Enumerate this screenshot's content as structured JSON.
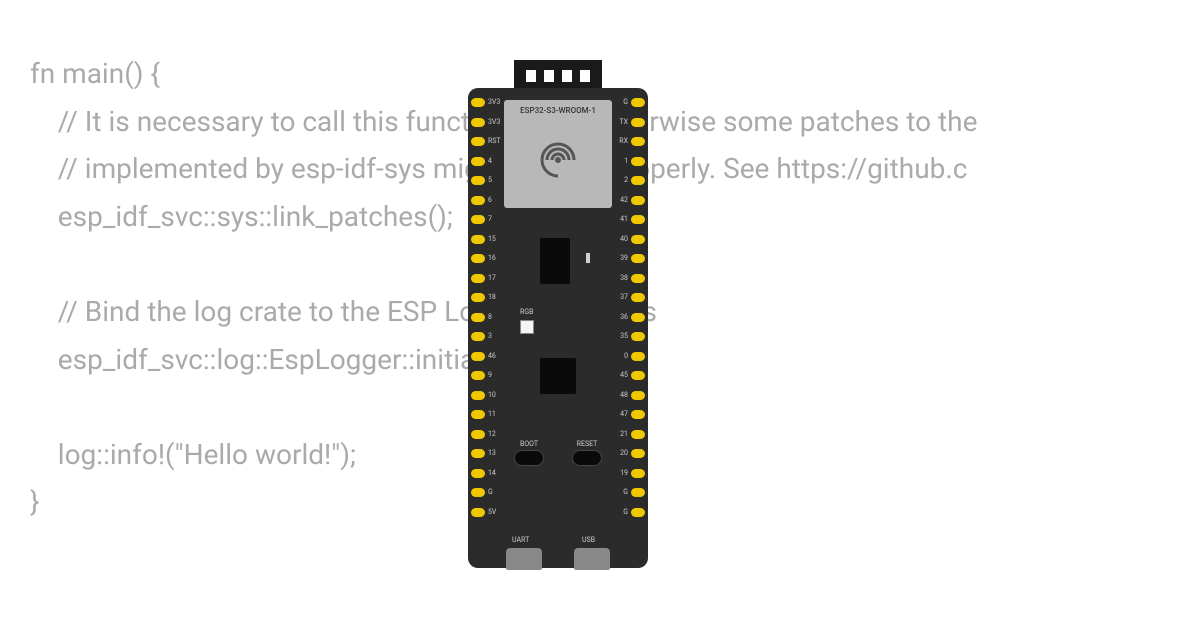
{
  "code": {
    "lines": [
      "fn main() {",
      "    // It is necessary to call this function once. Otherwise some patches to the",
      "    // implemented by esp-idf-sys might not link properly. See https://github.c",
      "    esp_idf_svc::sys::link_patches();",
      "",
      "    // Bind the log crate to the ESP Logging facilities",
      "    esp_idf_svc::log::EspLogger::initialize_default();",
      "",
      "    log::info!(\"Hello world!\");",
      "}"
    ],
    "color": "#aaaaaa",
    "fontsize": 28
  },
  "board": {
    "chip_label": "ESP32-S3-WROOM-1",
    "rgb_label": "RGB",
    "boot_label": "BOOT",
    "reset_label": "RESET",
    "uart_label": "UART",
    "usb_label": "USB",
    "colors": {
      "pcb": "#2b2b2b",
      "pin": "#f0c800",
      "chip": "#b8b8b8",
      "antenna": "#1a1a1a"
    },
    "left_pins": [
      "3V3",
      "3V3",
      "RST",
      "4",
      "5",
      "6",
      "7",
      "15",
      "16",
      "17",
      "18",
      "8",
      "3",
      "46",
      "9",
      "10",
      "11",
      "12",
      "13",
      "14",
      "G",
      "5V"
    ],
    "right_pins": [
      "G",
      "TX",
      "RX",
      "1",
      "2",
      "42",
      "41",
      "40",
      "39",
      "38",
      "37",
      "36",
      "35",
      "0",
      "45",
      "48",
      "47",
      "21",
      "20",
      "19",
      "G",
      "G"
    ]
  }
}
